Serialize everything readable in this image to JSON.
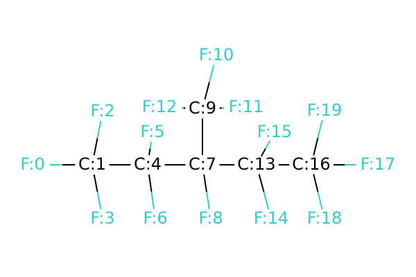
{
  "colors": {
    "carbon": "#000000",
    "fluorine": "#33cccc",
    "background": "#ffffff"
  },
  "atoms": [
    {
      "id": "F0",
      "label": "F:0",
      "element": "F"
    },
    {
      "id": "C1",
      "label": "C:1",
      "element": "C"
    },
    {
      "id": "F2",
      "label": "F:2",
      "element": "F"
    },
    {
      "id": "F3",
      "label": "F:3",
      "element": "F"
    },
    {
      "id": "C4",
      "label": "C:4",
      "element": "C"
    },
    {
      "id": "F5",
      "label": "F:5",
      "element": "F"
    },
    {
      "id": "F6",
      "label": "F:6",
      "element": "F"
    },
    {
      "id": "C7",
      "label": "C:7",
      "element": "C"
    },
    {
      "id": "F8",
      "label": "F:8",
      "element": "F"
    },
    {
      "id": "C9",
      "label": "C:9",
      "element": "C"
    },
    {
      "id": "F10",
      "label": "F:10",
      "element": "F"
    },
    {
      "id": "F11",
      "label": "F:11",
      "element": "F"
    },
    {
      "id": "F12",
      "label": "F:12",
      "element": "F"
    },
    {
      "id": "C13",
      "label": "C:13",
      "element": "C"
    },
    {
      "id": "F14",
      "label": "F:14",
      "element": "F"
    },
    {
      "id": "F15",
      "label": "F:15",
      "element": "F"
    },
    {
      "id": "C16",
      "label": "C:16",
      "element": "C"
    },
    {
      "id": "F17",
      "label": "F:17",
      "element": "F"
    },
    {
      "id": "F18",
      "label": "F:18",
      "element": "F"
    },
    {
      "id": "F19",
      "label": "F:19",
      "element": "F"
    }
  ],
  "bonds": [
    [
      "F0",
      "C1"
    ],
    [
      "C1",
      "F2"
    ],
    [
      "C1",
      "F3"
    ],
    [
      "C1",
      "C4"
    ],
    [
      "C4",
      "F5"
    ],
    [
      "C4",
      "F6"
    ],
    [
      "C4",
      "C7"
    ],
    [
      "C7",
      "F8"
    ],
    [
      "C7",
      "C9"
    ],
    [
      "C9",
      "F10"
    ],
    [
      "C9",
      "F11"
    ],
    [
      "C9",
      "F12"
    ],
    [
      "C7",
      "C13"
    ],
    [
      "C13",
      "F14"
    ],
    [
      "C13",
      "F15"
    ],
    [
      "C13",
      "C16"
    ],
    [
      "C16",
      "F17"
    ],
    [
      "C16",
      "F18"
    ],
    [
      "C16",
      "F19"
    ]
  ]
}
